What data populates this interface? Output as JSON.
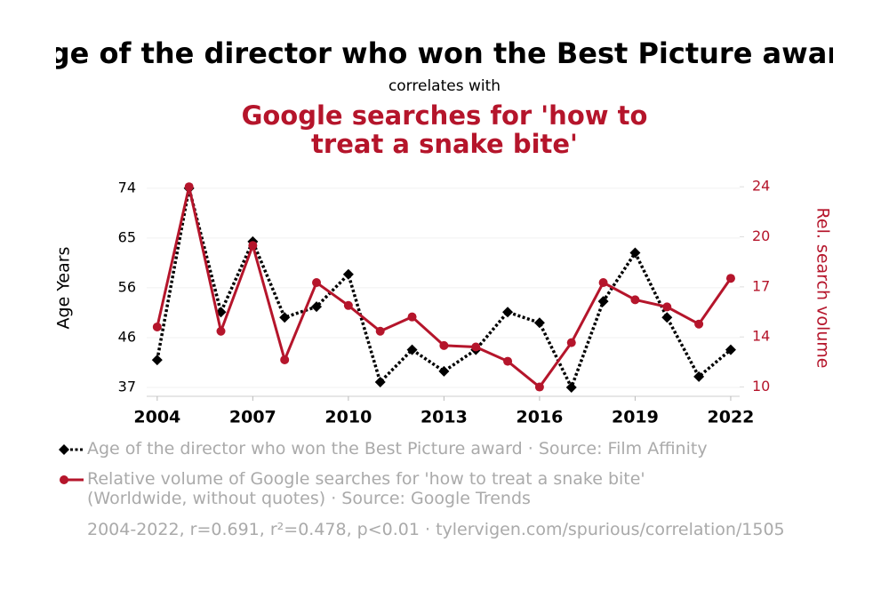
{
  "chart_data": {
    "type": "line",
    "title": "Age of the director who won the Best Picture award",
    "subtitle": "correlates with",
    "correlated_title": "Google searches for 'how to treat a snake bite'",
    "ylabel": "Age Years",
    "y2label": "Rel. search volume",
    "note": "2004-2022, r=0.691, r²=0.478, p<0.01 · tylervigen.com/spurious/correlation/1505",
    "x": [
      2004,
      2005,
      2006,
      2007,
      2008,
      2009,
      2010,
      2011,
      2012,
      2013,
      2014,
      2015,
      2016,
      2017,
      2018,
      2019,
      2020,
      2021,
      2022
    ],
    "xlim": [
      2003.67,
      2022.28
    ],
    "xticks": [
      2004,
      2007,
      2010,
      2013,
      2016,
      2019,
      2022
    ],
    "ylim": [
      35.35,
      74.8
    ],
    "yticks": [
      37,
      {
        "value": 46.25,
        "label": "46"
      },
      {
        "value": 55.5,
        "label": "56"
      },
      {
        "value": 64.75,
        "label": "65"
      },
      74
    ],
    "y2lim": [
      9.35,
      24.2
    ],
    "y2ticks": [
      10,
      {
        "value": 13.5,
        "label": "14"
      },
      17,
      {
        "value": 20.5,
        "label": "20"
      },
      24
    ],
    "grid": true,
    "series": [
      {
        "name": "Age of the director who won the Best Picture award · Source: Film Affinity",
        "color": "#000000",
        "axis": "y",
        "values": [
          42.1,
          74,
          51,
          64.1,
          50,
          52,
          58,
          38,
          44,
          40,
          44,
          51,
          49,
          37,
          53,
          62,
          50,
          39,
          44
        ]
      },
      {
        "name": "Relative volume of Google searches for 'how to treat a snake bite' (Worldwide, without quotes) · Source: Google Trends",
        "color": "#b5152b",
        "axis": "y2",
        "values": [
          14.2,
          24,
          13.9,
          19.9,
          11.9,
          17.3,
          15.7,
          13.9,
          14.9,
          12.9,
          12.8,
          11.8,
          10,
          13.1,
          17.3,
          16.1,
          15.6,
          14.4,
          17.6
        ]
      }
    ]
  }
}
